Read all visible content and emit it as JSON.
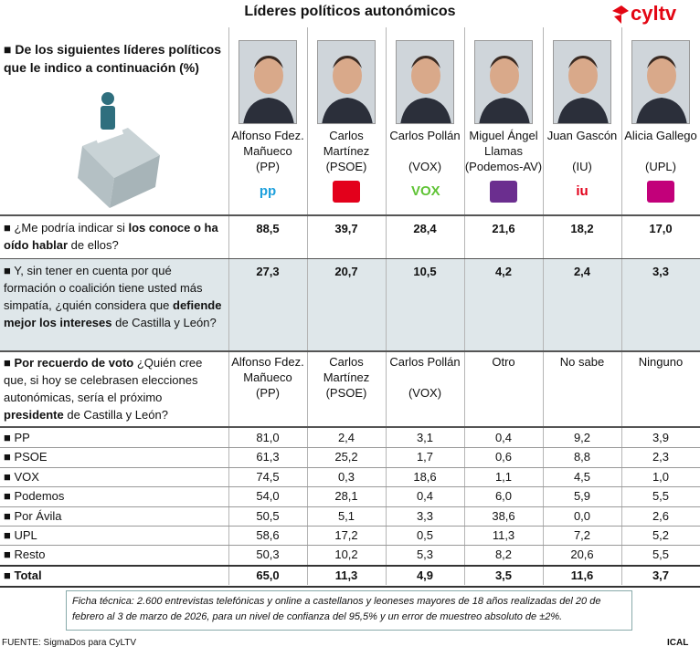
{
  "header": {
    "title": "Líderes políticos autonómicos",
    "logo": "cyltv"
  },
  "intro": "De los siguientes líderes políticos que le indico a continuación (%)",
  "leaders": [
    {
      "name": "Alfonso Fdez. Mañueco",
      "party": "(PP)",
      "logo": "pp",
      "color": "#1ea0dc"
    },
    {
      "name": "Carlos Martínez",
      "party": "(PSOE)",
      "logo": "",
      "color": "#e3001b"
    },
    {
      "name": "Carlos Pollán",
      "party": "(VOX)",
      "logo": "VOX",
      "color": "#5fc335"
    },
    {
      "name": "Miguel Ángel Llamas",
      "party": "(Podemos-AV)",
      "logo": "",
      "color": "#6b2e8f"
    },
    {
      "name": "Juan Gascón",
      "party": "(IU)",
      "logo": "iu",
      "color": "#e2001a"
    },
    {
      "name": "Alicia Gallego",
      "party": "(UPL)",
      "logo": "",
      "color": "#c2007a"
    }
  ],
  "questions": [
    {
      "segments": [
        {
          "text": "¿Me podría indicar si ",
          "bold": false
        },
        {
          "text": "los conoce o ha oído hablar",
          "bold": true
        },
        {
          "text": " de ellos?",
          "bold": false
        }
      ],
      "values": [
        "88,5",
        "39,7",
        "28,4",
        "21,6",
        "18,2",
        "17,0"
      ],
      "shaded": false
    },
    {
      "segments": [
        {
          "text": "Y, sin tener en cuenta por qué formación o coalición tiene usted más simpatía, ¿quién considera que ",
          "bold": false
        },
        {
          "text": "defiende mejor los intereses",
          "bold": true
        },
        {
          "text": " de Castilla y León?",
          "bold": false
        }
      ],
      "values": [
        "27,3",
        "20,7",
        "10,5",
        "4,2",
        "2,4",
        "3,3"
      ],
      "shaded": true
    }
  ],
  "vote_question": {
    "segments": [
      {
        "text": "Por recuerdo de voto",
        "bold": true
      },
      {
        "text": " ¿Quién cree que, si hoy se celebrasen elecciones autonómicas, sería el próximo ",
        "bold": false
      },
      {
        "text": "presidente",
        "bold": true
      },
      {
        "text": " de Castilla y León?",
        "bold": false
      }
    ],
    "columns": [
      {
        "name": "Alfonso Fdez. Mañueco",
        "party": "(PP)"
      },
      {
        "name": "Carlos Martínez",
        "party": "(PSOE)"
      },
      {
        "name": "Carlos Pollán",
        "party": "(VOX)"
      },
      {
        "name": "Otro"
      },
      {
        "name": "No sabe"
      },
      {
        "name": "Ninguno"
      }
    ]
  },
  "table": {
    "rows": [
      {
        "label": "PP",
        "values": [
          "81,0",
          "2,4",
          "3,1",
          "0,4",
          "9,2",
          "3,9"
        ]
      },
      {
        "label": "PSOE",
        "values": [
          "61,3",
          "25,2",
          "1,7",
          "0,6",
          "8,8",
          "2,3"
        ]
      },
      {
        "label": "VOX",
        "values": [
          "74,5",
          "0,3",
          "18,6",
          "1,1",
          "4,5",
          "1,0"
        ]
      },
      {
        "label": "Podemos",
        "values": [
          "54,0",
          "28,1",
          "0,4",
          "6,0",
          "5,9",
          "5,5"
        ]
      },
      {
        "label": "Por Ávila",
        "values": [
          "50,5",
          "5,1",
          "3,3",
          "38,6",
          "0,0",
          "2,6"
        ]
      },
      {
        "label": "UPL",
        "values": [
          "58,6",
          "17,2",
          "0,5",
          "11,3",
          "7,2",
          "5,2"
        ]
      },
      {
        "label": "Resto",
        "values": [
          "50,3",
          "10,2",
          "5,3",
          "8,2",
          "20,6",
          "5,5"
        ]
      }
    ],
    "total": {
      "label": "Total",
      "values": [
        "65,0",
        "11,3",
        "4,9",
        "3,5",
        "11,6",
        "3,7"
      ]
    }
  },
  "note": "Ficha técnica: 2.600 entrevistas telefónicas y online a castellanos y leoneses mayores de 18 años realizadas del 20 de febrero al 3 de marzo de 2026, para un nivel de confianza del 95,5% y un error de muestreo absoluto de ±2%.",
  "footer": {
    "source": "FUENTE: SigmaDos para CyLTV",
    "agency": "ICAL"
  }
}
